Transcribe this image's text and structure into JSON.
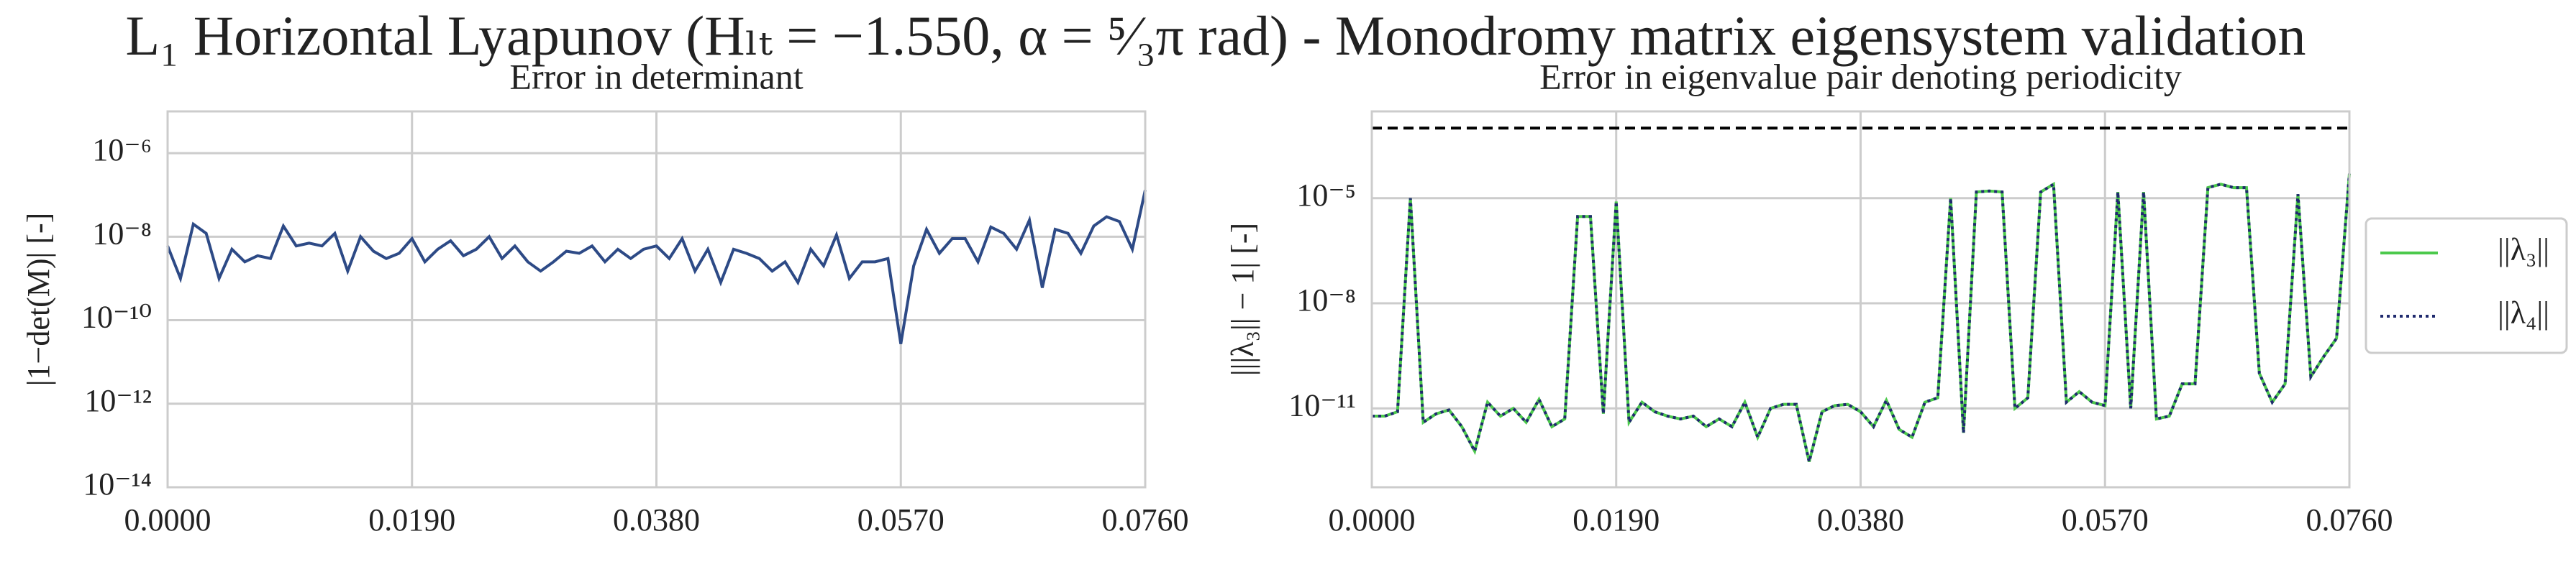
{
  "title": "L₁ Horizontal Lyapunov (Hₗₜ = −1.550, α = ⁵⁄₃π rad) - Monodromy matrix eigensystem validation",
  "chart_data": [
    {
      "type": "line",
      "title": "Error in determinant",
      "ylabel": "|1−det(M)| [-]",
      "log_y": true,
      "grid": true,
      "xlim": [
        0,
        0.076
      ],
      "ylim": [
        1e-14,
        1e-05
      ],
      "xticks": [
        {
          "value": 0,
          "label": "0.0000"
        },
        {
          "value": 0.019,
          "label": "0.0190"
        },
        {
          "value": 0.038,
          "label": "0.0380"
        },
        {
          "value": 0.057,
          "label": "0.0570"
        },
        {
          "value": 0.076,
          "label": "0.0760"
        }
      ],
      "yticks": [
        {
          "value": 1e-14,
          "label": "10⁻¹⁴"
        },
        {
          "value": 1e-12,
          "label": "10⁻¹²"
        },
        {
          "value": 1e-10,
          "label": "10⁻¹⁰"
        },
        {
          "value": 1e-08,
          "label": "10⁻⁸"
        },
        {
          "value": 1e-06,
          "label": "10⁻⁶"
        }
      ],
      "x": [
        0,
        0.001,
        0.002,
        0.003,
        0.004,
        0.005,
        0.006,
        0.007,
        0.008,
        0.009,
        0.01,
        0.011,
        0.012,
        0.013,
        0.014,
        0.015,
        0.016,
        0.017,
        0.018,
        0.019,
        0.02,
        0.021,
        0.022,
        0.023,
        0.024,
        0.025,
        0.026,
        0.027,
        0.028,
        0.029,
        0.03,
        0.031,
        0.032,
        0.033,
        0.034,
        0.035,
        0.036,
        0.037,
        0.038,
        0.039,
        0.04,
        0.041,
        0.042,
        0.043,
        0.044,
        0.045,
        0.046,
        0.047,
        0.048,
        0.049,
        0.05,
        0.051,
        0.052,
        0.053,
        0.054,
        0.055,
        0.056,
        0.057,
        0.058,
        0.059,
        0.06,
        0.061,
        0.062,
        0.063,
        0.064,
        0.065,
        0.066,
        0.067,
        0.068,
        0.069,
        0.07,
        0.071,
        0.072,
        0.073,
        0.074,
        0.075,
        0.076
      ],
      "series": [
        {
          "color": "#2d4a86",
          "style": "solid",
          "values": [
            6e-09,
            1e-09,
            2e-08,
            1.2e-08,
            1e-09,
            5e-09,
            2.5e-09,
            3.5e-09,
            3e-09,
            1.8e-08,
            6e-09,
            7e-09,
            6e-09,
            1.2e-08,
            1.5e-09,
            1e-08,
            4.5e-09,
            3e-09,
            4e-09,
            9e-09,
            2.5e-09,
            5e-09,
            8e-09,
            3.5e-09,
            5e-09,
            1e-08,
            3e-09,
            6e-09,
            2.5e-09,
            1.5e-09,
            2.5e-09,
            4.5e-09,
            4e-09,
            6e-09,
            2.5e-09,
            5e-09,
            3e-09,
            5e-09,
            6e-09,
            3e-09,
            9e-09,
            1.5e-09,
            5e-09,
            8e-10,
            5e-09,
            4e-09,
            3e-09,
            1.5e-09,
            2.5e-09,
            8e-10,
            5e-09,
            2e-09,
            1.1e-08,
            1e-09,
            2.5e-09,
            2.5e-09,
            3e-09,
            2.7e-11,
            2e-09,
            1.5e-08,
            4e-09,
            9e-09,
            9e-09,
            2.5e-09,
            1.7e-08,
            1.2e-08,
            5e-09,
            2.5e-08,
            6e-10,
            1.5e-08,
            1.2e-08,
            4e-09,
            1.8e-08,
            3e-08,
            2.3e-08,
            5e-09,
            1.3e-07
          ]
        }
      ]
    },
    {
      "type": "line",
      "title": "Error in eigenvalue pair denoting periodicity",
      "ylabel": "|||λ₃|| − 1| [-]",
      "log_y": true,
      "grid": true,
      "legend": "outside right",
      "xlim": [
        0,
        0.076
      ],
      "ylim": [
        5.6e-14,
        0.003
      ],
      "xticks": [
        {
          "value": 0,
          "label": "0.0000"
        },
        {
          "value": 0.019,
          "label": "0.0190"
        },
        {
          "value": 0.038,
          "label": "0.0380"
        },
        {
          "value": 0.057,
          "label": "0.0570"
        },
        {
          "value": 0.076,
          "label": "0.0760"
        }
      ],
      "yticks": [
        {
          "value": 1e-11,
          "label": "10⁻¹¹"
        },
        {
          "value": 1e-08,
          "label": "10⁻⁸"
        },
        {
          "value": 1e-05,
          "label": "10⁻⁵"
        }
      ],
      "hlines": [
        {
          "value": 0.001,
          "color": "#000000",
          "style": "dashed"
        }
      ],
      "x": [
        0,
        0.001,
        0.002,
        0.003,
        0.004,
        0.005,
        0.006,
        0.007,
        0.008,
        0.009,
        0.01,
        0.011,
        0.012,
        0.013,
        0.014,
        0.015,
        0.016,
        0.017,
        0.018,
        0.019,
        0.02,
        0.021,
        0.022,
        0.023,
        0.024,
        0.025,
        0.026,
        0.027,
        0.028,
        0.029,
        0.03,
        0.031,
        0.032,
        0.033,
        0.034,
        0.035,
        0.036,
        0.037,
        0.038,
        0.039,
        0.04,
        0.041,
        0.042,
        0.043,
        0.044,
        0.045,
        0.046,
        0.047,
        0.048,
        0.049,
        0.05,
        0.051,
        0.052,
        0.053,
        0.054,
        0.055,
        0.056,
        0.057,
        0.058,
        0.059,
        0.06,
        0.061,
        0.062,
        0.063,
        0.064,
        0.065,
        0.066,
        0.067,
        0.068,
        0.069,
        0.07,
        0.071,
        0.072,
        0.073,
        0.074,
        0.075,
        0.076
      ],
      "series": [
        {
          "name": "||λ₃||",
          "color": "#4cc94c",
          "style": "solid",
          "values": [
            6e-12,
            6e-12,
            8e-12,
            1e-05,
            4e-12,
            7e-12,
            9e-12,
            3e-12,
            6e-13,
            1.5e-11,
            6e-12,
            1e-11,
            4e-12,
            1.8e-11,
            3e-12,
            5e-12,
            3e-06,
            3e-06,
            7e-12,
            8e-06,
            4e-12,
            1.5e-11,
            8e-12,
            6e-12,
            5e-12,
            6e-12,
            3e-12,
            5e-12,
            3e-12,
            1.5e-11,
            1.5e-12,
            1e-11,
            1.3e-11,
            1.3e-11,
            3e-13,
            8e-12,
            1.2e-11,
            1.3e-11,
            8e-12,
            3e-12,
            1.7e-11,
            2.5e-12,
            1.5e-12,
            1.5e-11,
            2e-11,
            1e-05,
            2e-12,
            1.5e-05,
            1.6e-05,
            1.5e-05,
            1e-11,
            2e-11,
            1.5e-05,
            2.5e-05,
            1.5e-11,
            3e-11,
            1.5e-11,
            1.2e-11,
            1.5e-05,
            1e-11,
            1.5e-05,
            5e-12,
            6e-12,
            5e-11,
            5e-11,
            2e-05,
            2.5e-05,
            2e-05,
            2e-05,
            1e-10,
            1.5e-11,
            5e-11,
            1.3e-05,
            8e-11,
            3e-10,
            1e-09,
            5e-05
          ]
        },
        {
          "name": "||λ₄||",
          "color": "#1f2a6e",
          "style": "dotted",
          "values": [
            6e-12,
            6e-12,
            8e-12,
            1e-05,
            4e-12,
            7e-12,
            9e-12,
            3e-12,
            6e-13,
            1.5e-11,
            6e-12,
            1e-11,
            4e-12,
            1.8e-11,
            3e-12,
            5e-12,
            3e-06,
            3e-06,
            7e-12,
            8e-06,
            4e-12,
            1.5e-11,
            8e-12,
            6e-12,
            5e-12,
            6e-12,
            3e-12,
            5e-12,
            3e-12,
            1.5e-11,
            1.5e-12,
            1e-11,
            1.3e-11,
            1.3e-11,
            3e-13,
            8e-12,
            1.2e-11,
            1.3e-11,
            8e-12,
            3e-12,
            1.7e-11,
            2.5e-12,
            1.5e-12,
            1.5e-11,
            2e-11,
            1e-05,
            2e-12,
            1.5e-05,
            1.6e-05,
            1.5e-05,
            1e-11,
            2e-11,
            1.5e-05,
            2.5e-05,
            1.5e-11,
            3e-11,
            1.5e-11,
            1.2e-11,
            1.5e-05,
            1e-11,
            1.5e-05,
            5e-12,
            6e-12,
            5e-11,
            5e-11,
            2e-05,
            2.5e-05,
            2e-05,
            2e-05,
            1e-10,
            1.5e-11,
            5e-11,
            1.3e-05,
            8e-11,
            3e-10,
            1e-09,
            5e-05
          ]
        }
      ]
    }
  ]
}
